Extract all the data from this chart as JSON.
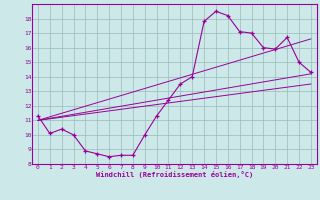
{
  "xlabel": "Windchill (Refroidissement éolien,°C)",
  "ylabel": "",
  "bg_color": "#cce8e8",
  "line_color": "#990099",
  "grid_color": "#99bbbb",
  "xlim": [
    -0.5,
    23.5
  ],
  "ylim": [
    8,
    19
  ],
  "xticks": [
    0,
    1,
    2,
    3,
    4,
    5,
    6,
    7,
    8,
    9,
    10,
    11,
    12,
    13,
    14,
    15,
    16,
    17,
    18,
    19,
    20,
    21,
    22,
    23
  ],
  "yticks": [
    8,
    9,
    10,
    11,
    12,
    13,
    14,
    15,
    16,
    17,
    18
  ],
  "curve1_x": [
    0,
    1,
    2,
    3,
    4,
    5,
    6,
    7,
    8,
    9,
    10,
    11,
    12,
    13,
    14,
    15,
    16,
    17,
    18,
    19,
    20,
    21,
    22,
    23
  ],
  "curve1_y": [
    11.3,
    10.1,
    10.4,
    10.0,
    8.9,
    8.7,
    8.5,
    8.6,
    8.6,
    10.0,
    11.3,
    12.4,
    13.5,
    14.0,
    17.8,
    18.5,
    18.2,
    17.1,
    17.0,
    16.0,
    15.9,
    16.7,
    15.0,
    14.3
  ],
  "line1_x": [
    0,
    23
  ],
  "line1_y": [
    11.0,
    14.2
  ],
  "line2_x": [
    0,
    23
  ],
  "line2_y": [
    11.0,
    16.6
  ],
  "line3_x": [
    0,
    23
  ],
  "line3_y": [
    11.0,
    13.5
  ]
}
